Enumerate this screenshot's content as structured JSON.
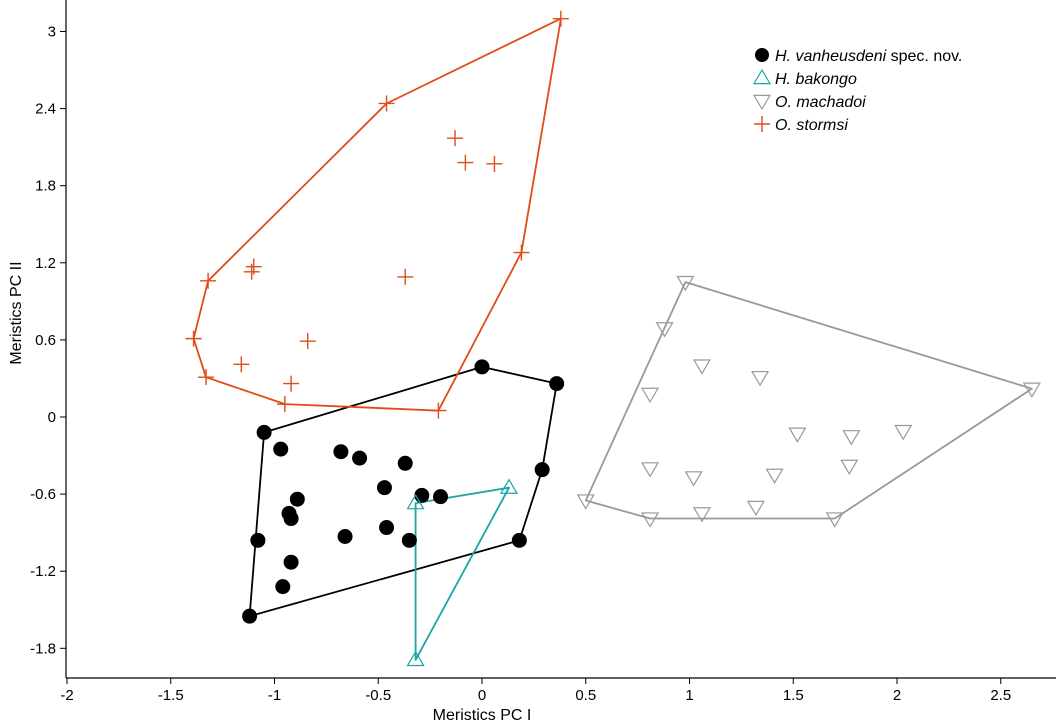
{
  "chart_data": {
    "type": "scatter",
    "title": "",
    "xlabel": "Meristics PC I",
    "ylabel": "Meristics PC II",
    "xlim": [
      -2,
      2.8
    ],
    "ylim": [
      -1.95,
      3.15
    ],
    "xticks": [
      "-2",
      "-1.5",
      "-1",
      "-0.5",
      "0",
      "0.5",
      "1",
      "1.5",
      "2",
      "2.5"
    ],
    "yticks": [
      "-1.8",
      "-1.2",
      "-0.6",
      "0",
      "0.6",
      "1.2",
      "1.8",
      "2.4",
      "3"
    ],
    "grid": false,
    "legend_position": "top-right",
    "series": [
      {
        "name_italic": "H. vanheusdeni",
        "name_suffix": " spec. nov.",
        "marker": "filled-circle",
        "color": "#000000",
        "points": [
          [
            -1.05,
            -0.12
          ],
          [
            -0.97,
            -0.25
          ],
          [
            -0.68,
            -0.27
          ],
          [
            -0.59,
            -0.32
          ],
          [
            -0.37,
            -0.36
          ],
          [
            -0.89,
            -0.64
          ],
          [
            -0.47,
            -0.55
          ],
          [
            -0.29,
            -0.61
          ],
          [
            -0.2,
            -0.62
          ],
          [
            -0.93,
            -0.75
          ],
          [
            -0.92,
            -0.79
          ],
          [
            -1.08,
            -0.96
          ],
          [
            -0.66,
            -0.93
          ],
          [
            -0.46,
            -0.86
          ],
          [
            -0.35,
            -0.96
          ],
          [
            -0.92,
            -1.13
          ],
          [
            -0.96,
            -1.32
          ],
          [
            -1.12,
            -1.55
          ],
          [
            0.0,
            0.39
          ],
          [
            0.36,
            0.26
          ],
          [
            0.29,
            -0.41
          ],
          [
            0.18,
            -0.96
          ]
        ],
        "hull": [
          [
            -1.12,
            -1.55
          ],
          [
            -1.05,
            -0.12
          ],
          [
            0.0,
            0.39
          ],
          [
            0.36,
            0.26
          ],
          [
            0.29,
            -0.41
          ],
          [
            0.18,
            -0.96
          ]
        ]
      },
      {
        "name_italic": "H. bakongo",
        "name_suffix": "",
        "marker": "triangle-up",
        "color": "#1aa6a3",
        "points": [
          [
            -0.32,
            -0.67
          ],
          [
            0.13,
            -0.55
          ],
          [
            -0.32,
            -1.89
          ]
        ],
        "hull": [
          [
            -0.32,
            -0.67
          ],
          [
            0.13,
            -0.55
          ],
          [
            -0.32,
            -1.89
          ]
        ]
      },
      {
        "name_italic": "O. machadoi",
        "name_suffix": "",
        "marker": "triangle-down",
        "color": "#999999",
        "points": [
          [
            0.98,
            1.05
          ],
          [
            0.88,
            0.69
          ],
          [
            1.06,
            0.4
          ],
          [
            1.34,
            0.31
          ],
          [
            0.81,
            0.18
          ],
          [
            2.65,
            0.22
          ],
          [
            1.52,
            -0.13
          ],
          [
            1.78,
            -0.15
          ],
          [
            2.03,
            -0.11
          ],
          [
            0.81,
            -0.4
          ],
          [
            1.02,
            -0.47
          ],
          [
            1.41,
            -0.45
          ],
          [
            1.77,
            -0.38
          ],
          [
            0.5,
            -0.65
          ],
          [
            0.81,
            -0.79
          ],
          [
            1.06,
            -0.75
          ],
          [
            1.32,
            -0.7
          ],
          [
            1.7,
            -0.79
          ]
        ],
        "hull": [
          [
            0.5,
            -0.65
          ],
          [
            0.98,
            1.05
          ],
          [
            2.65,
            0.22
          ],
          [
            1.7,
            -0.79
          ],
          [
            0.81,
            -0.79
          ]
        ]
      },
      {
        "name_italic": "O. stormsi",
        "name_suffix": "",
        "marker": "plus",
        "color": "#e14b16",
        "points": [
          [
            0.38,
            3.1
          ],
          [
            -0.46,
            2.44
          ],
          [
            -0.13,
            2.17
          ],
          [
            -0.08,
            1.98
          ],
          [
            0.06,
            1.97
          ],
          [
            0.19,
            1.28
          ],
          [
            -1.32,
            1.06
          ],
          [
            -1.1,
            1.17
          ],
          [
            -1.11,
            1.13
          ],
          [
            -0.37,
            1.09
          ],
          [
            -1.39,
            0.61
          ],
          [
            -1.16,
            0.41
          ],
          [
            -0.84,
            0.59
          ],
          [
            -1.33,
            0.31
          ],
          [
            -0.92,
            0.26
          ],
          [
            -0.95,
            0.1
          ],
          [
            -0.21,
            0.05
          ]
        ],
        "hull": [
          [
            0.38,
            3.1
          ],
          [
            -0.46,
            2.44
          ],
          [
            -1.32,
            1.06
          ],
          [
            -1.39,
            0.61
          ],
          [
            -1.33,
            0.31
          ],
          [
            -0.95,
            0.1
          ],
          [
            -0.21,
            0.05
          ],
          [
            0.19,
            1.28
          ]
        ]
      }
    ]
  }
}
